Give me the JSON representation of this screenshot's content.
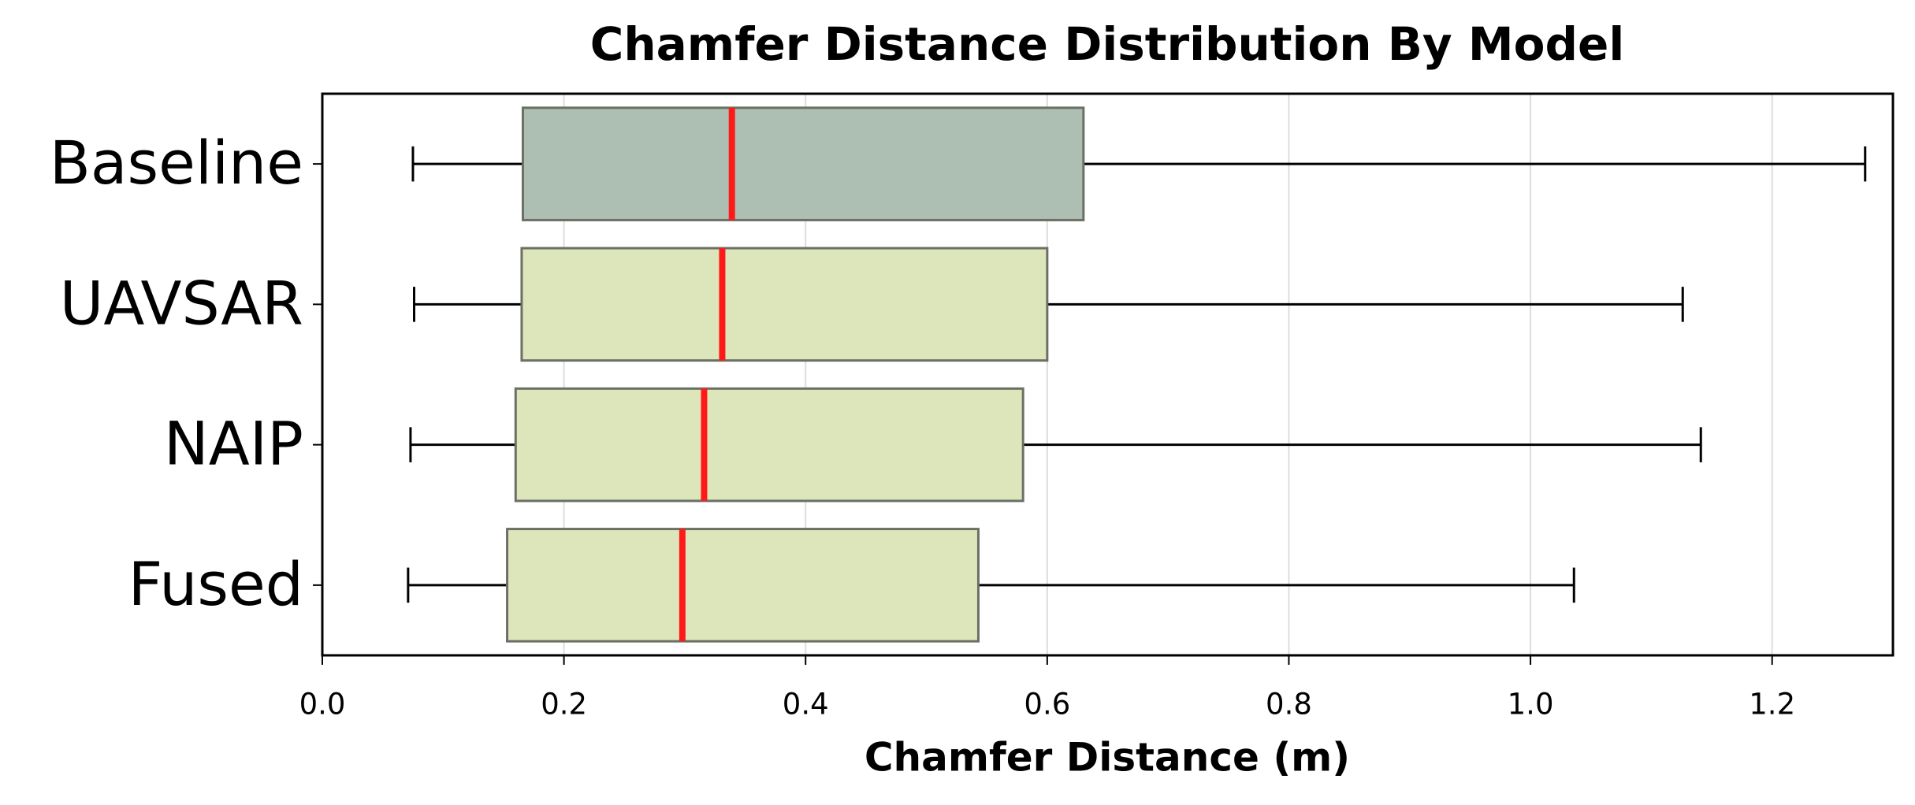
{
  "chart_data": {
    "type": "box",
    "title": "Chamfer Distance Distribution By Model",
    "x_label": "Chamfer Distance (m)",
    "orientation": "horizontal",
    "categories": [
      "Baseline",
      "UAVSAR",
      "NAIP",
      "Fused"
    ],
    "boxes": [
      {
        "min": 0.075,
        "q1": 0.166,
        "median": 0.339,
        "q3": 0.63,
        "max": 1.277
      },
      {
        "min": 0.076,
        "q1": 0.165,
        "median": 0.331,
        "q3": 0.6,
        "max": 1.126
      },
      {
        "min": 0.073,
        "q1": 0.16,
        "median": 0.316,
        "q3": 0.58,
        "max": 1.141
      },
      {
        "min": 0.071,
        "q1": 0.153,
        "median": 0.298,
        "q3": 0.543,
        "max": 1.036
      }
    ],
    "colors": [
      "#adbfb2",
      "#dde5bb",
      "#dde5bb",
      "#dde5bb"
    ],
    "median_color": "#ff1a1a",
    "xlim": [
      0,
      1.3
    ],
    "xticks": [
      {
        "value": 0,
        "label": "0.0"
      },
      0.2,
      0.4,
      0.6,
      0.8,
      {
        "value": 1,
        "label": "1.0"
      },
      1.2
    ],
    "grid": true
  }
}
